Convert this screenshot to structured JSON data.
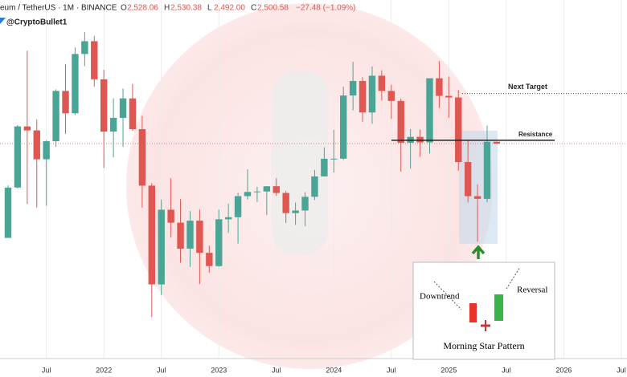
{
  "chart_data": {
    "type": "candlestick",
    "header": {
      "symbol": "eum / TetherUS · 1M · BINANCE",
      "ohlc": [
        {
          "key": "O",
          "value": "2,528.06"
        },
        {
          "key": "H",
          "value": "2,530.38"
        },
        {
          "key": "L",
          "value": "2,492.00"
        },
        {
          "key": "C",
          "value": "2,500.58"
        }
      ],
      "change": "−27.48 (−1.09%)"
    },
    "author": "@CryptoBullet1",
    "x": [
      "2021-03",
      "2021-04",
      "2021-05",
      "2021-06",
      "2021-07",
      "2021-08",
      "2021-09",
      "2021-10",
      "2021-11",
      "2021-12",
      "2022-01",
      "2022-02",
      "2022-03",
      "2022-04",
      "2022-05",
      "2022-06",
      "2022-07",
      "2022-08",
      "2022-09",
      "2022-10",
      "2022-11",
      "2022-12",
      "2023-01",
      "2023-02",
      "2023-03",
      "2023-04",
      "2023-05",
      "2023-06",
      "2023-07",
      "2023-08",
      "2023-09",
      "2023-10",
      "2023-11",
      "2023-12",
      "2024-01",
      "2024-02",
      "2024-03",
      "2024-04",
      "2024-05",
      "2024-06",
      "2024-07",
      "2024-08",
      "2024-09",
      "2024-10",
      "2024-11",
      "2024-12",
      "2025-01",
      "2025-02",
      "2025-03",
      "2025-04",
      "2025-05",
      "2025-06"
    ],
    "candles": {
      "open": [
        1417,
        1919,
        2772,
        2707,
        2275,
        2536,
        3433,
        3001,
        4288,
        4631,
        3682,
        2688,
        2919,
        3282,
        2727,
        1941,
        1071,
        1679,
        1553,
        1328,
        1572,
        1295,
        1196,
        1585,
        1605,
        1822,
        1869,
        1874,
        1934,
        1857,
        1645,
        1671,
        1815,
        2052,
        2282,
        2283,
        3340,
        3645,
        3015,
        3762,
        3433,
        3232,
        2513,
        2603,
        2518,
        3705,
        3332,
        3300,
        2237,
        1822,
        1793,
        2528.06
      ],
      "high": [
        1943,
        2797,
        4372,
        2891,
        2550,
        3466,
        4027,
        4460,
        4891,
        4779,
        3900,
        3285,
        3482,
        3580,
        2955,
        1970,
        1785,
        2030,
        1790,
        1665,
        1680,
        1352,
        1680,
        1743,
        1857,
        2141,
        1929,
        1930,
        2029,
        1880,
        1753,
        1866,
        2134,
        2445,
        2718,
        3523,
        4093,
        3730,
        3977,
        3887,
        3563,
        3279,
        2728,
        2722,
        3682,
        4107,
        3745,
        3450,
        2550,
        1956,
        2788,
        2530.38
      ],
      "low": [
        1433,
        1909,
        1737,
        1700,
        1719,
        2451,
        2651,
        2970,
        3981,
        3525,
        2159,
        2300,
        2450,
        2700,
        1700,
        880,
        1005,
        1422,
        1220,
        1190,
        1073,
        1150,
        1190,
        1460,
        1370,
        1785,
        1760,
        1626,
        1825,
        1550,
        1532,
        1521,
        1780,
        2050,
        2100,
        2266,
        3056,
        2852,
        2817,
        3240,
        2900,
        2111,
        2150,
        2310,
        2357,
        3097,
        2920,
        2124,
        1754,
        1385,
        1756,
        2492
      ],
      "close": [
        1918,
        2773,
        2706,
        2275,
        2536,
        3433,
        3001,
        4288,
        4631,
        3682,
        2688,
        2919,
        3282,
        2727,
        1941,
        1071,
        1679,
        1553,
        1328,
        1572,
        1295,
        1196,
        1585,
        1605,
        1822,
        1869,
        1874,
        1934,
        1857,
        1645,
        1671,
        1815,
        2052,
        2282,
        2283,
        3340,
        3645,
        3015,
        3762,
        3433,
        3232,
        2513,
        2603,
        2518,
        3705,
        3332,
        3300,
        2237,
        1822,
        1793,
        2528.06,
        2500.58
      ]
    },
    "up_color": "#4aa596",
    "down_color": "#e05752",
    "log_scale": true,
    "ylim": [
      692,
      5935
    ],
    "xticks": [
      {
        "value": "2021-07",
        "label": "Jul"
      },
      {
        "value": "2022-01",
        "label": "2022"
      },
      {
        "value": "2022-07",
        "label": "Jul"
      },
      {
        "value": "2023-01",
        "label": "2023"
      },
      {
        "value": "2023-07",
        "label": "Jul"
      },
      {
        "value": "2024-01",
        "label": "2024"
      },
      {
        "value": "2024-07",
        "label": "Jul"
      },
      {
        "value": "2025-01",
        "label": "2025"
      },
      {
        "value": "2025-07",
        "label": "Jul"
      },
      {
        "value": "2026-01",
        "label": "2026"
      },
      {
        "value": "2026-07",
        "label": "Jul"
      }
    ],
    "grid": true,
    "levels": [
      {
        "label": "Next Target",
        "value": 3380
      },
      {
        "label": "Resistance",
        "value": 2550
      }
    ],
    "inset": {
      "left": "Downtrend",
      "right": "Reversal",
      "title": "Morning Star Pattern"
    }
  }
}
